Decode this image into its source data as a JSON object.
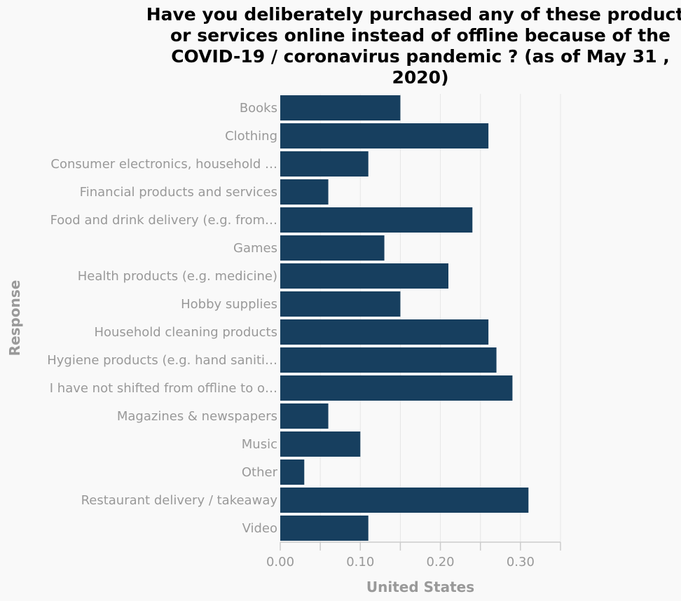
{
  "title": "Have you deliberately purchased any of these products or services online instead of offline because of the COVID-19 / coronavirus pandemic ? (as of May 31 , 2020)",
  "colors": {
    "bar": "#173f5f",
    "grid": "#e6e6e6",
    "axis": "#cccccc",
    "text": "#999999"
  },
  "chart_data": {
    "type": "bar",
    "orientation": "horizontal",
    "title": "Have you deliberately purchased any of these products or services online instead of offline because of the COVID-19 / coronavirus pandemic ? (as of May 31 , 2020)",
    "xlabel": "United States",
    "ylabel": "Response",
    "xlim": [
      0,
      0.35
    ],
    "xticks": [
      0,
      0.1,
      0.2,
      0.3
    ],
    "xtick_labels": [
      "0.00",
      "0.10",
      "0.20",
      "0.30"
    ],
    "grid": true,
    "categories": [
      "Books",
      "Clothing",
      "Consumer electronics, household …",
      "Financial products and services",
      "Food and drink delivery (e.g. from…",
      "Games",
      "Health products (e.g. medicine)",
      "Hobby supplies",
      "Household cleaning products",
      "Hygiene products (e.g. hand saniti…",
      "I have not shifted from offline to o…",
      "Magazines & newspapers",
      "Music",
      "Other",
      "Restaurant delivery / takeaway",
      "Video"
    ],
    "values": [
      0.15,
      0.26,
      0.11,
      0.06,
      0.24,
      0.13,
      0.21,
      0.15,
      0.26,
      0.27,
      0.29,
      0.06,
      0.1,
      0.03,
      0.31,
      0.11
    ]
  }
}
